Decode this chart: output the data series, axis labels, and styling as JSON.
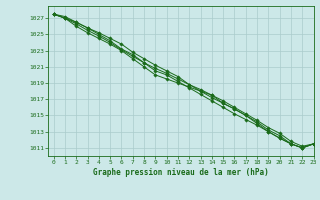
{
  "title": "Graphe pression niveau de la mer (hPa)",
  "background_color": "#cce8e8",
  "grid_color": "#aacccc",
  "line_color": "#1a6b1a",
  "marker_color": "#1a6b1a",
  "xlim": [
    -0.5,
    23
  ],
  "ylim": [
    1010.0,
    1028.5
  ],
  "yticks": [
    1011,
    1013,
    1015,
    1017,
    1019,
    1021,
    1023,
    1025,
    1027
  ],
  "xticks": [
    0,
    1,
    2,
    3,
    4,
    5,
    6,
    7,
    8,
    9,
    10,
    11,
    12,
    13,
    14,
    15,
    16,
    17,
    18,
    19,
    20,
    21,
    22,
    23
  ],
  "series": [
    [
      1027.5,
      1027.0,
      1026.3,
      1025.5,
      1024.8,
      1024.0,
      1023.1,
      1022.3,
      1021.5,
      1020.5,
      1020.0,
      1019.2,
      1018.4,
      1017.6,
      1016.8,
      1016.0,
      1015.2,
      1014.5,
      1013.8,
      1013.0,
      1012.2,
      1011.5,
      1011.0,
      1011.5
    ],
    [
      1027.5,
      1027.0,
      1026.0,
      1025.2,
      1024.5,
      1023.8,
      1023.0,
      1022.0,
      1021.0,
      1020.0,
      1019.5,
      1019.0,
      1018.5,
      1018.0,
      1017.5,
      1016.5,
      1015.8,
      1015.0,
      1014.2,
      1013.2,
      1012.5,
      1011.5,
      1011.0,
      1011.5
    ],
    [
      1027.5,
      1027.2,
      1026.5,
      1025.8,
      1025.2,
      1024.5,
      1023.8,
      1022.8,
      1022.0,
      1021.2,
      1020.5,
      1019.8,
      1018.8,
      1018.0,
      1017.2,
      1016.5,
      1015.8,
      1015.0,
      1014.0,
      1013.0,
      1012.2,
      1011.5,
      1011.0,
      1011.5
    ],
    [
      1027.5,
      1027.0,
      1026.5,
      1025.8,
      1025.0,
      1024.2,
      1023.2,
      1022.5,
      1021.5,
      1020.8,
      1020.2,
      1019.5,
      1018.8,
      1018.2,
      1017.5,
      1016.8,
      1016.0,
      1015.2,
      1014.4,
      1013.5,
      1012.8,
      1011.8,
      1011.2,
      1011.5
    ]
  ]
}
